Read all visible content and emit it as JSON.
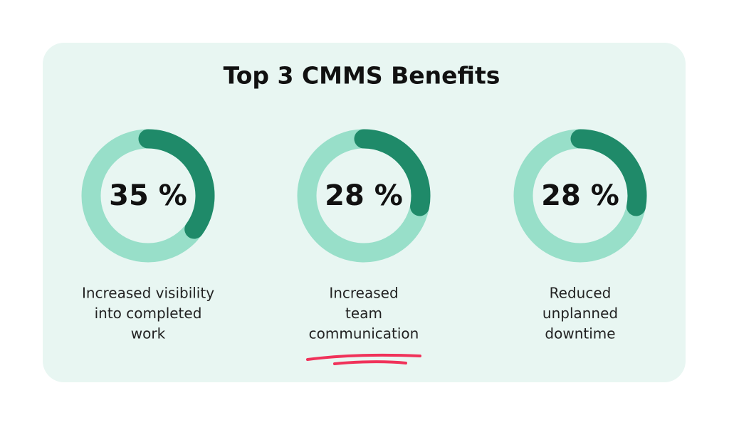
{
  "title": "Top 3 CMMS Benefits",
  "chart_data": [
    {
      "type": "donut",
      "values": [
        35
      ],
      "value_labels": [
        "35 %"
      ],
      "caption": [
        "Increased visibility",
        "into completed",
        "work"
      ],
      "color": "#1f8a69",
      "track_color": "#98dfc9"
    },
    {
      "type": "donut",
      "values": [
        28
      ],
      "value_labels": [
        "28 %"
      ],
      "caption": [
        "Increased",
        "team",
        "communication"
      ],
      "color": "#1f8a69",
      "track_color": "#98dfc9"
    },
    {
      "type": "donut",
      "values": [
        28
      ],
      "value_labels": [
        "28 %"
      ],
      "caption": [
        "Reduced",
        "unplanned",
        "downtime"
      ],
      "color": "#1f8a69",
      "track_color": "#98dfc9"
    }
  ]
}
